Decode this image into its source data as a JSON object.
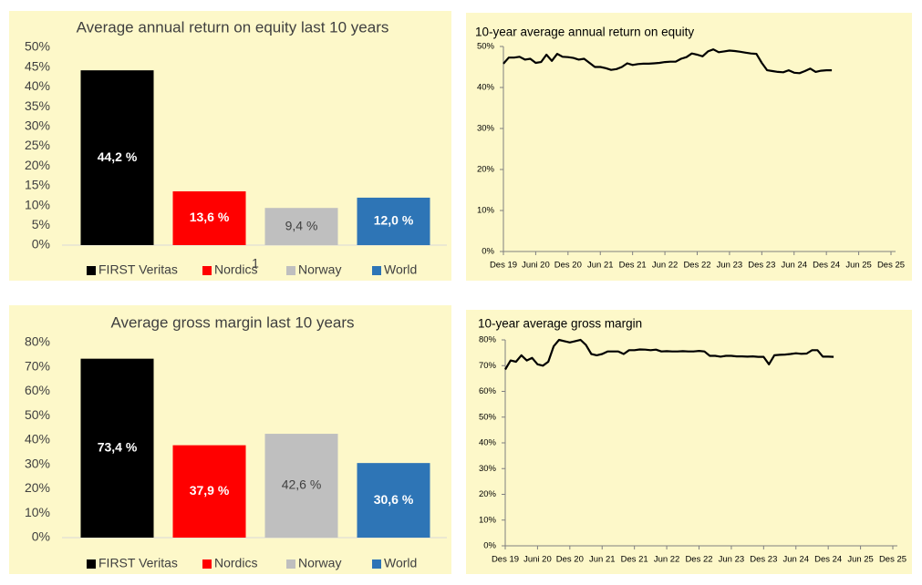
{
  "chart_data": [
    {
      "type": "bar",
      "title": "Average annual return on equity last 10 years",
      "categories": [
        "FIRST Veritas",
        "Nordics",
        "Norway",
        "World"
      ],
      "values": [
        44.2,
        13.6,
        9.4,
        12.0
      ],
      "value_labels": [
        "44,2 %",
        "13,6 %",
        "9,4 %",
        "12,0 %"
      ],
      "colors": [
        "#000000",
        "#ff0000",
        "#bfbfbf",
        "#2e75b6"
      ],
      "label_colors": [
        "#ffffff",
        "#ffffff",
        "#404040",
        "#ffffff"
      ],
      "ylim": [
        0,
        50
      ],
      "yticks": [
        {
          "value": 0,
          "label": "0%"
        },
        {
          "value": 5,
          "label": "5%"
        },
        {
          "value": 10,
          "label": "10%"
        },
        {
          "value": 15,
          "label": "15%"
        },
        {
          "value": 20,
          "label": "20%"
        },
        {
          "value": 25,
          "label": "25%"
        },
        {
          "value": 30,
          "label": "30%"
        },
        {
          "value": 35,
          "label": "35%"
        },
        {
          "value": 40,
          "label": "40%"
        },
        {
          "value": 45,
          "label": "45%"
        },
        {
          "value": 50,
          "label": "50%"
        }
      ],
      "grid": false,
      "legend": "bottom",
      "annotation": "1"
    },
    {
      "type": "line",
      "title": "10-year average annual return on equity",
      "categories": [
        "Des 19",
        null,
        null,
        null,
        null,
        null,
        "Juni 20",
        null,
        null,
        null,
        null,
        null,
        "Des 20",
        null,
        null,
        null,
        null,
        null,
        "Jun 21",
        null,
        null,
        null,
        null,
        null,
        "Des 21",
        null,
        null,
        null,
        null,
        null,
        "Jun 22",
        null,
        null,
        null,
        null,
        null,
        "Des 22",
        null,
        null,
        null,
        null,
        null,
        "Jun 23",
        null,
        null,
        null,
        null,
        null,
        "Des 23",
        null,
        null,
        null,
        null,
        null,
        "Jun 24",
        null,
        null,
        null,
        null,
        null,
        "Des 24",
        null,
        null,
        null,
        null,
        null,
        "Jun 25",
        null,
        null,
        null,
        null,
        null,
        "Des 25"
      ],
      "values": [
        45.8,
        47.3,
        47.3,
        47.5,
        46.8,
        47.0,
        46.0,
        46.2,
        48.0,
        46.5,
        48.2,
        47.5,
        47.4,
        47.2,
        46.8,
        47.0,
        46.0,
        45.0,
        45.0,
        44.7,
        44.3,
        44.5,
        45.0,
        45.9,
        45.5,
        45.7,
        45.8,
        45.8,
        45.9,
        46.0,
        46.2,
        46.3,
        46.3,
        47.0,
        47.4,
        48.3,
        48.0,
        47.6,
        48.8,
        49.3,
        48.6,
        48.8,
        49.0,
        48.9,
        48.7,
        48.5,
        48.3,
        48.2,
        46.0,
        44.2,
        44.0,
        43.8,
        43.7,
        44.2,
        43.6,
        43.5,
        44.0,
        44.6,
        43.8,
        44.1,
        44.2,
        44.2,
        null,
        null,
        null,
        null,
        null,
        null,
        null,
        null,
        null,
        null,
        null
      ],
      "color": "#000000",
      "ylim": [
        0,
        50
      ],
      "yticks": [
        {
          "value": 0,
          "label": "0%"
        },
        {
          "value": 10,
          "label": "10%"
        },
        {
          "value": 20,
          "label": "20%"
        },
        {
          "value": 30,
          "label": "30%"
        },
        {
          "value": 40,
          "label": "40%"
        },
        {
          "value": 50,
          "label": "50%"
        }
      ],
      "grid": false
    },
    {
      "type": "bar",
      "title": "Average gross margin last 10 years",
      "categories": [
        "FIRST Veritas",
        "Nordics",
        "Norway",
        "World"
      ],
      "values": [
        73.4,
        37.9,
        42.6,
        30.6
      ],
      "value_labels": [
        "73,4 %",
        "37,9 %",
        "42,6 %",
        "30,6 %"
      ],
      "colors": [
        "#000000",
        "#ff0000",
        "#bfbfbf",
        "#2e75b6"
      ],
      "label_colors": [
        "#ffffff",
        "#ffffff",
        "#404040",
        "#ffffff"
      ],
      "ylim": [
        0,
        80
      ],
      "yticks": [
        {
          "value": 0,
          "label": "0%"
        },
        {
          "value": 10,
          "label": "10%"
        },
        {
          "value": 20,
          "label": "20%"
        },
        {
          "value": 30,
          "label": "30%"
        },
        {
          "value": 40,
          "label": "40%"
        },
        {
          "value": 50,
          "label": "50%"
        },
        {
          "value": 60,
          "label": "60%"
        },
        {
          "value": 70,
          "label": "70%"
        },
        {
          "value": 80,
          "label": "80%"
        }
      ],
      "grid": false,
      "legend": "bottom"
    },
    {
      "type": "line",
      "title": "10-year average gross margin",
      "categories": [
        "Des 19",
        null,
        null,
        null,
        null,
        null,
        "Juni 20",
        null,
        null,
        null,
        null,
        null,
        "Des 20",
        null,
        null,
        null,
        null,
        null,
        "Jun 21",
        null,
        null,
        null,
        null,
        null,
        "Des 21",
        null,
        null,
        null,
        null,
        null,
        "Jun 22",
        null,
        null,
        null,
        null,
        null,
        "Des 22",
        null,
        null,
        null,
        null,
        null,
        "Jun 23",
        null,
        null,
        null,
        null,
        null,
        "Des 23",
        null,
        null,
        null,
        null,
        null,
        "Jun 24",
        null,
        null,
        null,
        null,
        null,
        "Des 24",
        null,
        null,
        null,
        null,
        null,
        "Jun 25",
        null,
        null,
        null,
        null,
        null,
        "Des 25"
      ],
      "values": [
        68.5,
        72,
        71.5,
        74,
        72,
        73,
        70.5,
        70,
        71.5,
        77.5,
        80,
        79.5,
        79,
        79.5,
        80,
        78,
        74.5,
        74,
        74.5,
        75.5,
        75.5,
        75.5,
        74.5,
        76,
        76,
        76.3,
        76.2,
        76,
        76.2,
        75.5,
        75.6,
        75.5,
        75.5,
        75.6,
        75.5,
        75.5,
        75.7,
        75.5,
        73.8,
        73.8,
        73.5,
        73.8,
        73.8,
        73.6,
        73.6,
        73.5,
        73.6,
        73.4,
        73.4,
        70.5,
        74,
        74.2,
        74.3,
        74.5,
        74.8,
        74.6,
        74.7,
        76,
        76,
        73.5,
        73.5,
        73.4,
        null,
        null,
        null,
        null,
        null,
        null,
        null,
        null,
        null,
        null,
        null
      ],
      "color": "#000000",
      "ylim": [
        0,
        80
      ],
      "yticks": [
        {
          "value": 0,
          "label": "0%"
        },
        {
          "value": 10,
          "label": "10%"
        },
        {
          "value": 20,
          "label": "20%"
        },
        {
          "value": 30,
          "label": "30%"
        },
        {
          "value": 40,
          "label": "40%"
        },
        {
          "value": 50,
          "label": "50%"
        },
        {
          "value": 60,
          "label": "60%"
        },
        {
          "value": 70,
          "label": "70%"
        },
        {
          "value": 80,
          "label": "80%"
        }
      ],
      "grid": false
    }
  ]
}
